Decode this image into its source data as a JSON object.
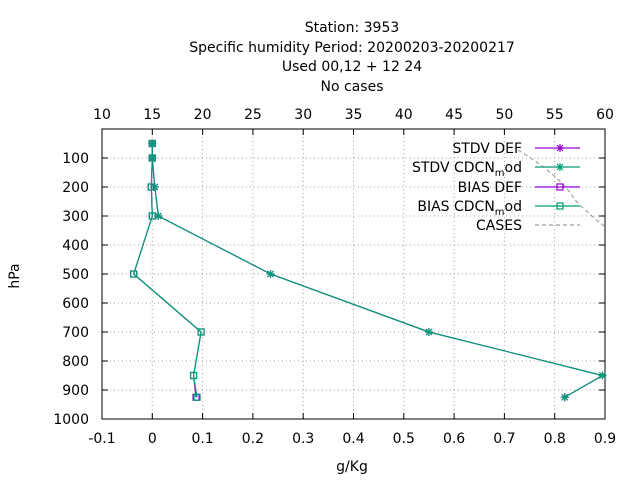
{
  "chart_data": {
    "type": "line",
    "title_lines": [
      "Station:     3953",
      "Specific humidity  Period: 20200203-20200217",
      "Used  00,12 + 12 24",
      "No cases"
    ],
    "xlabel": "g/Kg",
    "ylabel": "hPa",
    "xlim": [
      -0.1,
      0.9
    ],
    "ylim": [
      1000,
      0
    ],
    "x_ticks": [
      "-0.1",
      "0",
      "0.1",
      "0.2",
      "0.3",
      "0.4",
      "0.5",
      "0.6",
      "0.7",
      "0.8",
      "0.9"
    ],
    "y_ticks": [
      "100",
      "200",
      "300",
      "400",
      "500",
      "600",
      "700",
      "800",
      "900",
      "1000"
    ],
    "x2lim": [
      10,
      60
    ],
    "x2_ticks": [
      "10",
      "15",
      "20",
      "25",
      "30",
      "35",
      "40",
      "45",
      "50",
      "55",
      "60"
    ],
    "grid": true,
    "legend_position": "top-right",
    "legend": [
      {
        "label": "STDV DEF",
        "sub": "",
        "tail": "",
        "color": "#9400d3",
        "marker": "star"
      },
      {
        "label": "STDV CDCN",
        "sub": "m",
        "tail": "od",
        "color": "#009e73",
        "marker": "star"
      },
      {
        "label": "BIAS DEF",
        "sub": "",
        "tail": "",
        "color": "#9400d3",
        "marker": "square"
      },
      {
        "label": "BIAS CDCN",
        "sub": "m",
        "tail": "od",
        "color": "#009e73",
        "marker": "square"
      },
      {
        "label": "CASES",
        "sub": "",
        "tail": "",
        "color": "#a0a0a0",
        "marker": "dashed"
      }
    ],
    "series": [
      {
        "name": "STDV DEF",
        "color": "#9400d3",
        "marker": "star",
        "points": [
          [
            0.0,
            50
          ],
          [
            0.0,
            100
          ],
          [
            0.005,
            200
          ],
          [
            0.012,
            300
          ],
          [
            0.235,
            500
          ],
          [
            0.55,
            700
          ],
          [
            0.895,
            850
          ],
          [
            0.82,
            925
          ]
        ]
      },
      {
        "name": "STDV CDCN mod",
        "color": "#009e73",
        "marker": "star",
        "points": [
          [
            0.0,
            50
          ],
          [
            0.0,
            100
          ],
          [
            0.005,
            200
          ],
          [
            0.012,
            300
          ],
          [
            0.235,
            500
          ],
          [
            0.55,
            700
          ],
          [
            0.895,
            850
          ],
          [
            0.82,
            925
          ]
        ]
      },
      {
        "name": "BIAS DEF",
        "color": "#9400d3",
        "marker": "square",
        "points": [
          [
            0.0,
            50
          ],
          [
            0.0,
            100
          ],
          [
            -0.002,
            200
          ],
          [
            0.0,
            300
          ],
          [
            -0.037,
            500
          ],
          [
            0.097,
            700
          ],
          [
            0.082,
            850
          ],
          [
            0.087,
            925
          ]
        ]
      },
      {
        "name": "BIAS CDCN mod",
        "color": "#009e73",
        "marker": "square",
        "points": [
          [
            0.0,
            50
          ],
          [
            0.0,
            100
          ],
          [
            -0.002,
            200
          ],
          [
            0.0,
            300
          ],
          [
            -0.037,
            500
          ],
          [
            0.097,
            700
          ],
          [
            0.082,
            850
          ],
          [
            0.089,
            925
          ]
        ]
      }
    ]
  }
}
